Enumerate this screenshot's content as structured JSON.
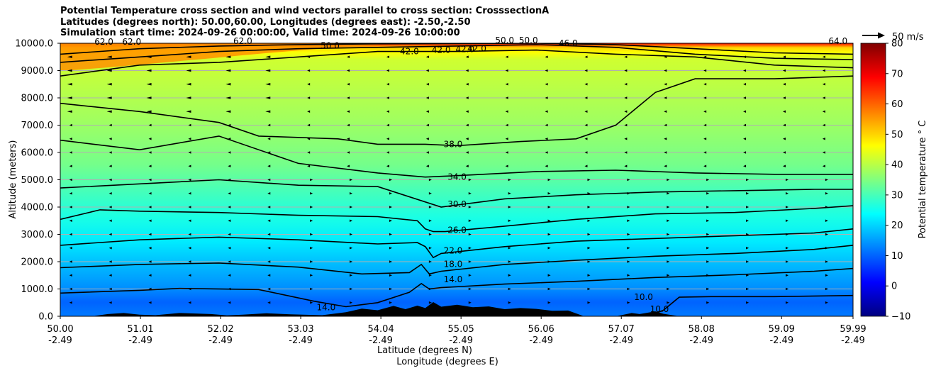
{
  "chart_data": {
    "type": "heatmap",
    "title_lines": [
      "Potential Temperature cross section and wind vectors parallel to cross section: CrosssectionA",
      "Latitudes (degrees north): 50.00,60.00, Longitudes (degrees east): -2.50,-2.50",
      "Simulation start time: 2024-09-26 00:00:00, Valid time: 2024-09-26 10:00:00"
    ],
    "xlabel": "Latitude (degrees N)",
    "xlabel2": "Longitude (degrees E)",
    "ylabel": "Altitude (meters)",
    "xlim": [
      50.0,
      59.99
    ],
    "ylim": [
      0,
      10000
    ],
    "x_ticks": [
      {
        "lat": "50.00",
        "lon": "-2.49",
        "value": 50.0
      },
      {
        "lat": "51.01",
        "lon": "-2.49",
        "value": 51.01
      },
      {
        "lat": "52.02",
        "lon": "-2.49",
        "value": 52.02
      },
      {
        "lat": "53.03",
        "lon": "-2.49",
        "value": 53.03
      },
      {
        "lat": "54.04",
        "lon": "-2.49",
        "value": 54.04
      },
      {
        "lat": "55.05",
        "lon": "-2.49",
        "value": 55.05
      },
      {
        "lat": "56.06",
        "lon": "-2.49",
        "value": 56.06
      },
      {
        "lat": "57.07",
        "lon": "-2.49",
        "value": 57.07
      },
      {
        "lat": "58.08",
        "lon": "-2.49",
        "value": 58.08
      },
      {
        "lat": "59.09",
        "lon": "-2.49",
        "value": 59.09
      },
      {
        "lat": "59.99",
        "lon": "-2.49",
        "value": 59.99
      }
    ],
    "y_ticks": [
      {
        "label": "0.0",
        "value": 0
      },
      {
        "label": "1000.0",
        "value": 1000
      },
      {
        "label": "2000.0",
        "value": 2000
      },
      {
        "label": "3000.0",
        "value": 3000
      },
      {
        "label": "4000.0",
        "value": 4000
      },
      {
        "label": "5000.0",
        "value": 5000
      },
      {
        "label": "6000.0",
        "value": 6000
      },
      {
        "label": "7000.0",
        "value": 7000
      },
      {
        "label": "8000.0",
        "value": 8000
      },
      {
        "label": "9000.0",
        "value": 9000
      },
      {
        "label": "10000.0",
        "value": 10000
      }
    ],
    "contours": [
      {
        "level": 10,
        "label": "10.0",
        "pts": [
          [
            57.4,
            0
          ],
          [
            57.6,
            220
          ],
          [
            57.8,
            700
          ],
          [
            58.2,
            720
          ],
          [
            59.0,
            720
          ],
          [
            59.99,
            760
          ]
        ]
      },
      {
        "level": 14,
        "label": "14.0",
        "pts": [
          [
            50.0,
            850
          ],
          [
            51.0,
            950
          ],
          [
            51.5,
            1020
          ],
          [
            52.5,
            980
          ],
          [
            53.2,
            550
          ],
          [
            53.6,
            350
          ],
          [
            54.0,
            500
          ],
          [
            54.4,
            880
          ],
          [
            54.55,
            1200
          ],
          [
            54.65,
            1000
          ],
          [
            54.8,
            1050
          ],
          [
            55.6,
            1180
          ],
          [
            56.5,
            1280
          ],
          [
            57.5,
            1420
          ],
          [
            58.5,
            1520
          ],
          [
            59.5,
            1650
          ],
          [
            59.99,
            1750
          ]
        ]
      },
      {
        "level": 18,
        "label": "18.0",
        "pts": [
          [
            50.0,
            1780
          ],
          [
            51.0,
            1900
          ],
          [
            52.0,
            1950
          ],
          [
            53.0,
            1800
          ],
          [
            53.8,
            1550
          ],
          [
            54.4,
            1600
          ],
          [
            54.55,
            1900
          ],
          [
            54.65,
            1550
          ],
          [
            54.8,
            1650
          ],
          [
            55.6,
            1900
          ],
          [
            56.5,
            2050
          ],
          [
            57.5,
            2200
          ],
          [
            58.5,
            2300
          ],
          [
            59.5,
            2450
          ],
          [
            59.99,
            2600
          ]
        ]
      },
      {
        "level": 22,
        "label": "22.0",
        "pts": [
          [
            50.0,
            2600
          ],
          [
            51.0,
            2800
          ],
          [
            52.0,
            2900
          ],
          [
            53.0,
            2800
          ],
          [
            54.0,
            2650
          ],
          [
            54.5,
            2700
          ],
          [
            54.6,
            2550
          ],
          [
            54.7,
            2150
          ],
          [
            54.8,
            2300
          ],
          [
            55.6,
            2550
          ],
          [
            56.5,
            2750
          ],
          [
            57.5,
            2850
          ],
          [
            58.5,
            2950
          ],
          [
            59.5,
            3050
          ],
          [
            59.99,
            3200
          ]
        ]
      },
      {
        "level": 26,
        "label": "26.0",
        "pts": [
          [
            50.0,
            3550
          ],
          [
            50.5,
            3900
          ],
          [
            51.0,
            3850
          ],
          [
            52.0,
            3800
          ],
          [
            53.0,
            3700
          ],
          [
            54.0,
            3650
          ],
          [
            54.5,
            3500
          ],
          [
            54.6,
            3200
          ],
          [
            54.7,
            3100
          ],
          [
            54.85,
            3100
          ],
          [
            55.6,
            3300
          ],
          [
            56.5,
            3550
          ],
          [
            57.5,
            3750
          ],
          [
            58.5,
            3800
          ],
          [
            59.5,
            3950
          ],
          [
            59.99,
            4050
          ]
        ]
      },
      {
        "level": 30,
        "label": "30.0",
        "pts": [
          [
            50.0,
            4700
          ],
          [
            51.0,
            4850
          ],
          [
            52.0,
            5000
          ],
          [
            53.0,
            4800
          ],
          [
            54.0,
            4750
          ],
          [
            54.8,
            4000
          ],
          [
            55.6,
            4300
          ],
          [
            56.5,
            4450
          ],
          [
            57.5,
            4550
          ],
          [
            58.5,
            4600
          ],
          [
            59.5,
            4650
          ],
          [
            59.99,
            4650
          ]
        ]
      },
      {
        "level": 34,
        "label": "34.0",
        "pts": [
          [
            50.0,
            6450
          ],
          [
            51.0,
            6100
          ],
          [
            52.0,
            6600
          ],
          [
            53.0,
            5600
          ],
          [
            54.0,
            5250
          ],
          [
            54.6,
            5100
          ],
          [
            55.0,
            5150
          ],
          [
            56.0,
            5300
          ],
          [
            57.0,
            5350
          ],
          [
            58.0,
            5250
          ],
          [
            59.0,
            5200
          ],
          [
            59.99,
            5200
          ]
        ]
      },
      {
        "level": 38,
        "label": "38.0",
        "pts": [
          [
            50.0,
            7800
          ],
          [
            51.0,
            7500
          ],
          [
            52.0,
            7100
          ],
          [
            52.5,
            6600
          ],
          [
            53.5,
            6500
          ],
          [
            54.0,
            6300
          ],
          [
            54.6,
            6300
          ],
          [
            55.0,
            6250
          ],
          [
            55.8,
            6400
          ],
          [
            56.5,
            6500
          ],
          [
            57.0,
            7000
          ],
          [
            57.5,
            8200
          ],
          [
            58.0,
            8700
          ],
          [
            59.0,
            8700
          ],
          [
            59.99,
            8800
          ]
        ]
      },
      {
        "level": 42,
        "label": "42.0",
        "pts": [
          [
            50.0,
            8800
          ],
          [
            51.0,
            9200
          ],
          [
            52.0,
            9300
          ],
          [
            53.0,
            9500
          ],
          [
            54.0,
            9700
          ],
          [
            55.0,
            9700
          ],
          [
            56.0,
            9750
          ],
          [
            57.0,
            9600
          ],
          [
            58.0,
            9500
          ],
          [
            59.0,
            9200
          ],
          [
            59.99,
            9100
          ]
        ]
      },
      {
        "level": 46,
        "label": "46.0",
        "pts": [
          [
            50.0,
            9300
          ],
          [
            51.0,
            9500
          ],
          [
            52.0,
            9700
          ],
          [
            53.0,
            9800
          ],
          [
            54.0,
            9850
          ],
          [
            55.0,
            9900
          ],
          [
            56.0,
            9950
          ],
          [
            57.0,
            9850
          ],
          [
            58.0,
            9600
          ],
          [
            59.0,
            9450
          ],
          [
            59.99,
            9400
          ]
        ]
      },
      {
        "level": 50,
        "label": "50.0",
        "pts": [
          [
            50.0,
            9600
          ],
          [
            51.0,
            9800
          ],
          [
            52.0,
            9900
          ],
          [
            53.0,
            9950
          ],
          [
            54.0,
            9980
          ],
          [
            55.0,
            9990
          ],
          [
            56.0,
            10000
          ],
          [
            57.0,
            9950
          ],
          [
            58.0,
            9800
          ],
          [
            59.0,
            9650
          ],
          [
            59.99,
            9600
          ]
        ]
      }
    ],
    "contour_labels": [
      {
        "text": "14.0",
        "x": 54.95,
        "y": 1250
      },
      {
        "text": "18.0",
        "x": 54.95,
        "y": 1800
      },
      {
        "text": "22.0",
        "x": 54.95,
        "y": 2300
      },
      {
        "text": "26.0",
        "x": 55.0,
        "y": 3050
      },
      {
        "text": "30.0",
        "x": 55.0,
        "y": 4000
      },
      {
        "text": "34.0",
        "x": 55.0,
        "y": 5000
      },
      {
        "text": "38.0",
        "x": 54.95,
        "y": 6200
      },
      {
        "text": "42.0",
        "x": 54.4,
        "y": 9600
      },
      {
        "text": "42.0",
        "x": 54.8,
        "y": 9650
      },
      {
        "text": "42.0",
        "x": 55.1,
        "y": 9680
      },
      {
        "text": "42.0",
        "x": 55.25,
        "y": 9700
      },
      {
        "text": "46.0",
        "x": 56.4,
        "y": 9900
      },
      {
        "text": "50.0",
        "x": 53.4,
        "y": 9800
      },
      {
        "text": "50.0",
        "x": 55.6,
        "y": 10000
      },
      {
        "text": "50.0",
        "x": 55.9,
        "y": 10000
      },
      {
        "text": "62.0",
        "x": 50.55,
        "y": 9950
      },
      {
        "text": "62.0",
        "x": 50.9,
        "y": 9950
      },
      {
        "text": "62.0",
        "x": 52.3,
        "y": 9970
      },
      {
        "text": "64.0",
        "x": 59.8,
        "y": 9980
      },
      {
        "text": "14.0",
        "x": 53.35,
        "y": 220
      },
      {
        "text": "10.0",
        "x": 57.35,
        "y": 600
      },
      {
        "text": "10.0",
        "x": 57.55,
        "y": 80
      }
    ],
    "terrain": [
      [
        50.0,
        0
      ],
      [
        50.4,
        0
      ],
      [
        50.6,
        80
      ],
      [
        50.8,
        120
      ],
      [
        51.0,
        60
      ],
      [
        51.2,
        40
      ],
      [
        51.5,
        120
      ],
      [
        51.9,
        80
      ],
      [
        52.1,
        30
      ],
      [
        52.3,
        60
      ],
      [
        52.6,
        110
      ],
      [
        52.9,
        70
      ],
      [
        53.3,
        40
      ],
      [
        53.6,
        150
      ],
      [
        53.8,
        280
      ],
      [
        54.0,
        220
      ],
      [
        54.2,
        380
      ],
      [
        54.35,
        260
      ],
      [
        54.5,
        390
      ],
      [
        54.6,
        300
      ],
      [
        54.7,
        520
      ],
      [
        54.8,
        350
      ],
      [
        55.0,
        420
      ],
      [
        55.2,
        330
      ],
      [
        55.4,
        360
      ],
      [
        55.6,
        260
      ],
      [
        55.8,
        300
      ],
      [
        56.0,
        270
      ],
      [
        56.2,
        200
      ],
      [
        56.4,
        210
      ],
      [
        56.6,
        0
      ],
      [
        57.0,
        0
      ],
      [
        57.1,
        60
      ],
      [
        57.2,
        120
      ],
      [
        57.3,
        80
      ],
      [
        57.5,
        180
      ],
      [
        57.6,
        90
      ],
      [
        57.8,
        0
      ],
      [
        59.99,
        0
      ]
    ],
    "colorbar": {
      "label": "Potential temperature ° C",
      "vmin": -10,
      "vmax": 80,
      "ticks": [
        {
          "label": "−10",
          "value": -10
        },
        {
          "label": "0",
          "value": 0
        },
        {
          "label": "10",
          "value": 10
        },
        {
          "label": "20",
          "value": 20
        },
        {
          "label": "30",
          "value": 30
        },
        {
          "label": "40",
          "value": 40
        },
        {
          "label": "50",
          "value": 50
        },
        {
          "label": "60",
          "value": 60
        },
        {
          "label": "70",
          "value": 70
        },
        {
          "label": "80",
          "value": 80
        }
      ]
    },
    "quiver_key": {
      "label": "50 m/s",
      "value": 50
    }
  }
}
